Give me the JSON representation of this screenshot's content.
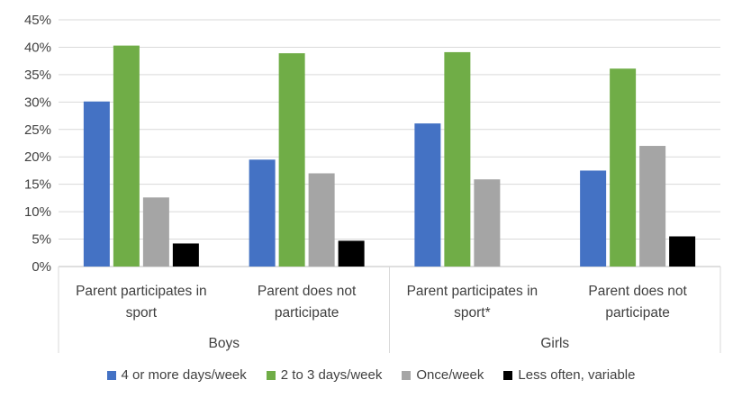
{
  "chart_data": {
    "type": "bar",
    "groups": [
      {
        "name": "Boys",
        "categories": [
          "Parent participates in sport",
          "Parent does not participate"
        ]
      },
      {
        "name": "Girls",
        "categories": [
          "Parent participates in sport*",
          "Parent does not participate"
        ]
      }
    ],
    "categories": [
      "Parent participates in sport",
      "Parent does not participate",
      "Parent participates in sport*",
      "Parent does not participate"
    ],
    "category_lines": [
      [
        "Parent participates in",
        "sport"
      ],
      [
        "Parent does not",
        "participate"
      ],
      [
        "Parent participates in",
        "sport*"
      ],
      [
        "Parent does not",
        "participate"
      ]
    ],
    "series": [
      {
        "name": "4 or more days/week",
        "color": "#4472C4",
        "values": [
          30.1,
          19.5,
          26.1,
          17.5
        ]
      },
      {
        "name": "2 to 3 days/week",
        "color": "#70AD47",
        "values": [
          40.3,
          38.9,
          39.1,
          36.1
        ]
      },
      {
        "name": "Once/week",
        "color": "#A5A5A5",
        "values": [
          12.6,
          17.0,
          15.9,
          22.0
        ]
      },
      {
        "name": "Less often, variable",
        "color": "#000000",
        "values": [
          4.2,
          4.7,
          null,
          5.5
        ]
      }
    ],
    "yticks": [
      "0%",
      "5%",
      "10%",
      "15%",
      "20%",
      "25%",
      "30%",
      "35%",
      "40%",
      "45%"
    ],
    "ylim": [
      0,
      45
    ],
    "grid": true,
    "legend_position": "bottom"
  }
}
